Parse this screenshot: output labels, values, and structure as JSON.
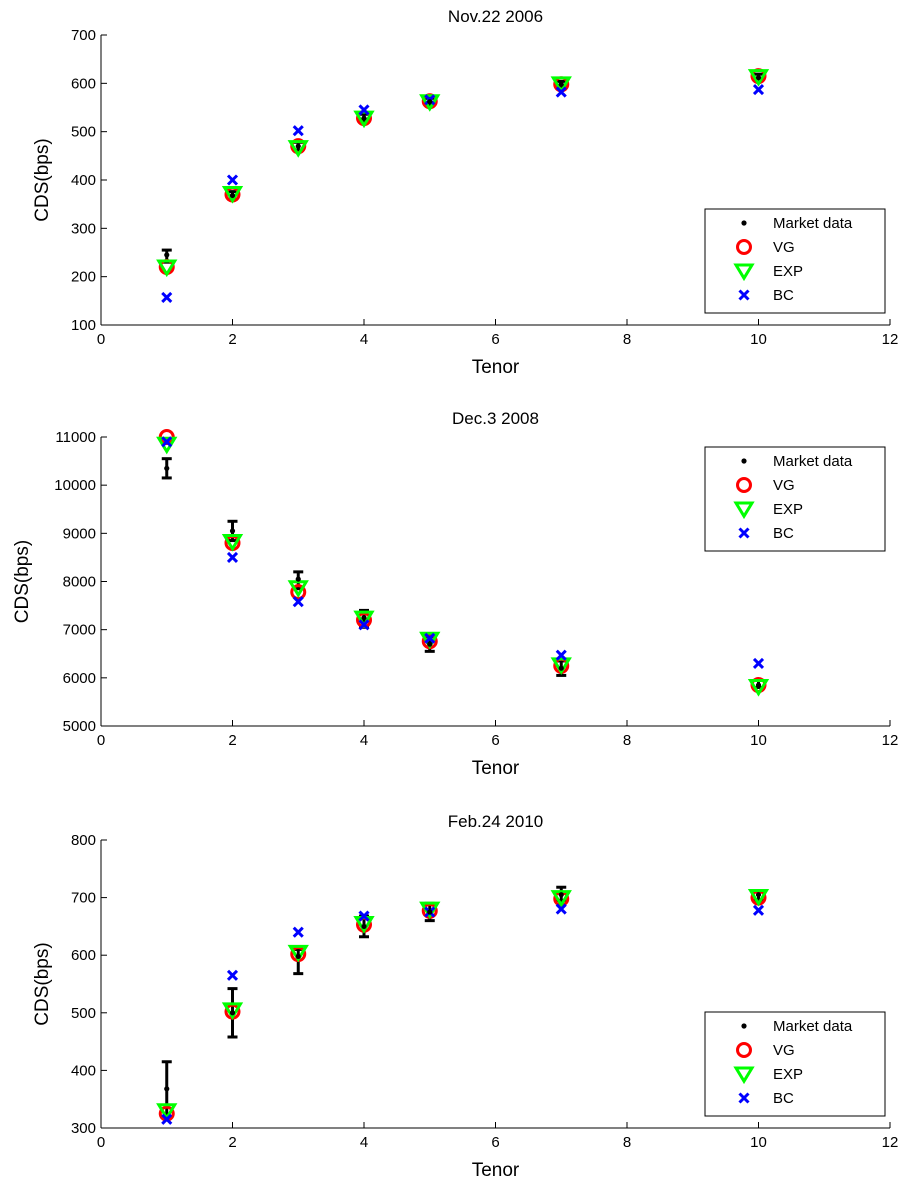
{
  "colors": {
    "market": "#000000",
    "vg": "#ff0000",
    "exp": "#00ff00",
    "bc": "#0000ff"
  },
  "chart_data": [
    {
      "type": "scatter",
      "title": "Nov.22 2006",
      "xlabel": "Tenor",
      "ylabel": "CDS(bps)",
      "xlim": [
        0,
        12
      ],
      "ylim": [
        100,
        700
      ],
      "xticks": [
        "0",
        "2",
        "4",
        "6",
        "8",
        "10",
        "12"
      ],
      "yticks": [
        "100",
        "200",
        "300",
        "400",
        "500",
        "600",
        "700"
      ],
      "x": [
        1,
        2,
        3,
        4,
        5,
        7,
        10
      ],
      "legend_position": "bottom-right",
      "market_data": {
        "name": "Market data",
        "values": [
          245,
          368,
          470,
          528,
          562,
          598,
          612
        ],
        "err_low": [
          230,
          360,
          462,
          520,
          555,
          592,
          605
        ],
        "err_high": [
          255,
          376,
          478,
          536,
          569,
          604,
          619
        ]
      },
      "series": [
        {
          "name": "VG",
          "marker": "circle",
          "values": [
            220,
            370,
            470,
            528,
            563,
            598,
            615
          ]
        },
        {
          "name": "EXP",
          "marker": "triangle-down",
          "values": [
            220,
            372,
            467,
            528,
            562,
            599,
            614
          ]
        },
        {
          "name": "BC",
          "marker": "x",
          "values": [
            157,
            400,
            502,
            545,
            566,
            582,
            587
          ]
        }
      ]
    },
    {
      "type": "scatter",
      "title": "Dec.3 2008",
      "xlabel": "Tenor",
      "ylabel": "CDS(bps)",
      "xlim": [
        0,
        12
      ],
      "ylim": [
        5000,
        11000
      ],
      "xticks": [
        "0",
        "2",
        "4",
        "6",
        "8",
        "10",
        "12"
      ],
      "yticks": [
        "5000",
        "6000",
        "7000",
        "8000",
        "9000",
        "10000",
        "11000"
      ],
      "x": [
        1,
        2,
        3,
        4,
        5,
        7,
        10
      ],
      "legend_position": "top-right",
      "market_data": {
        "name": "Market data",
        "values": [
          10350,
          9050,
          8050,
          7250,
          6700,
          6200,
          5850
        ],
        "err_low": [
          10150,
          8850,
          7850,
          7050,
          6550,
          6050,
          5800
        ],
        "err_high": [
          10550,
          9250,
          8200,
          7400,
          6850,
          6350,
          5950
        ]
      },
      "series": [
        {
          "name": "VG",
          "marker": "circle",
          "values": [
            11000,
            8800,
            7780,
            7200,
            6760,
            6250,
            5850
          ]
        },
        {
          "name": "EXP",
          "marker": "triangle-down",
          "values": [
            10850,
            8830,
            7870,
            7240,
            6800,
            6270,
            5820
          ]
        },
        {
          "name": "BC",
          "marker": "x",
          "values": [
            10900,
            8500,
            7580,
            7100,
            6820,
            6470,
            6300
          ]
        }
      ]
    },
    {
      "type": "scatter",
      "title": "Feb.24 2010",
      "xlabel": "Tenor",
      "ylabel": "CDS(bps)",
      "xlim": [
        0,
        12
      ],
      "ylim": [
        300,
        800
      ],
      "xticks": [
        "0",
        "2",
        "4",
        "6",
        "8",
        "10",
        "12"
      ],
      "yticks": [
        "300",
        "400",
        "500",
        "600",
        "700",
        "800"
      ],
      "x": [
        1,
        2,
        3,
        4,
        5,
        7,
        10
      ],
      "legend_position": "bottom-right",
      "market_data": {
        "name": "Market data",
        "values": [
          368,
          500,
          598,
          650,
          675,
          705,
          705
        ],
        "err_low": [
          320,
          458,
          568,
          632,
          660,
          695,
          695
        ],
        "err_high": [
          415,
          542,
          610,
          668,
          690,
          718,
          712
        ]
      },
      "series": [
        {
          "name": "VG",
          "marker": "circle",
          "values": [
            325,
            502,
            602,
            653,
            677,
            698,
            700
          ]
        },
        {
          "name": "EXP",
          "marker": "triangle-down",
          "values": [
            330,
            505,
            605,
            655,
            680,
            700,
            702
          ]
        },
        {
          "name": "BC",
          "marker": "x",
          "values": [
            315,
            565,
            640,
            668,
            675,
            680,
            678
          ]
        }
      ]
    }
  ]
}
